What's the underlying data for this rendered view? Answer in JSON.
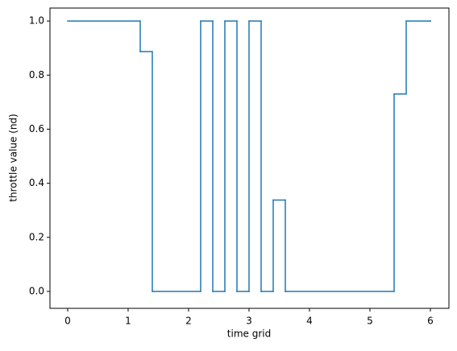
{
  "chart_data": {
    "type": "step",
    "xlabel": "time grid",
    "ylabel": "throttle value (nd)",
    "x": [
      0,
      1.2,
      1.4,
      2.2,
      2.4,
      2.6,
      2.8,
      3.0,
      3.2,
      3.4,
      3.6,
      5.4,
      5.6,
      6.0
    ],
    "series": [
      {
        "color": "#1f77b4",
        "values": [
          1,
          0.887,
          0,
          1,
          0,
          1,
          0,
          1,
          0,
          0.338,
          0,
          0.73,
          1,
          1
        ]
      }
    ],
    "xlim": [
      -0.293,
      6.307
    ],
    "ylim": [
      -0.0625,
      1.048
    ],
    "xticks": [
      0,
      1,
      2,
      3,
      4,
      5,
      6
    ],
    "yticks": [
      {
        "value": 0,
        "label": "0.0"
      },
      0.2,
      0.4,
      0.6,
      0.8,
      {
        "value": 1,
        "label": "1.0"
      }
    ],
    "grid": false
  }
}
